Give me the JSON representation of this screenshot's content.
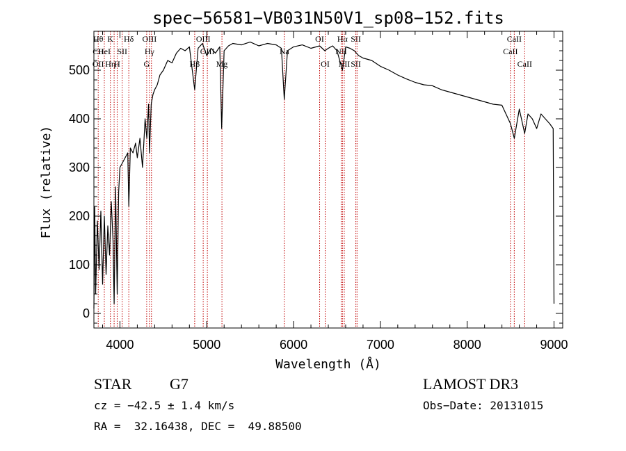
{
  "chart_data": {
    "type": "line",
    "title": "spec−56581−VB031N50V1_sp08−152.fits",
    "xlabel": "Wavelength (Å)",
    "ylabel": "Flux (relative)",
    "xlim": [
      3700,
      9100
    ],
    "ylim": [
      -30,
      580
    ],
    "xticks": [
      4000,
      5000,
      6000,
      7000,
      8000,
      9000
    ],
    "yticks": [
      0,
      100,
      200,
      300,
      400,
      500
    ],
    "grid": false,
    "series": [
      {
        "name": "spectrum",
        "color": "#000000",
        "x": [
          3700,
          3710,
          3720,
          3740,
          3760,
          3780,
          3800,
          3820,
          3840,
          3860,
          3880,
          3900,
          3920,
          3933,
          3950,
          3968,
          3985,
          4000,
          4030,
          4060,
          4090,
          4102,
          4120,
          4150,
          4180,
          4200,
          4230,
          4260,
          4290,
          4310,
          4330,
          4340,
          4360,
          4380,
          4400,
          4430,
          4460,
          4500,
          4550,
          4600,
          4650,
          4700,
          4750,
          4800,
          4861,
          4900,
          4950,
          5000,
          5050,
          5100,
          5150,
          5172,
          5200,
          5250,
          5300,
          5400,
          5500,
          5600,
          5700,
          5800,
          5860,
          5893,
          5930,
          6000,
          6100,
          6200,
          6300,
          6360,
          6400,
          6450,
          6500,
          6563,
          6600,
          6650,
          6700,
          6750,
          6800,
          6900,
          7000,
          7100,
          7200,
          7300,
          7400,
          7500,
          7600,
          7700,
          7800,
          7900,
          8000,
          8100,
          8200,
          8300,
          8400,
          8498,
          8542,
          8600,
          8662,
          8700,
          8750,
          8800,
          8850,
          8900,
          8950,
          8990,
          9000
        ],
        "values": [
          10,
          220,
          40,
          190,
          90,
          210,
          60,
          200,
          80,
          180,
          120,
          230,
          150,
          20,
          260,
          40,
          250,
          300,
          310,
          320,
          330,
          220,
          340,
          330,
          350,
          320,
          360,
          300,
          400,
          360,
          430,
          330,
          430,
          450,
          460,
          470,
          490,
          500,
          520,
          515,
          535,
          545,
          540,
          548,
          460,
          545,
          555,
          530,
          545,
          535,
          548,
          380,
          540,
          550,
          555,
          552,
          558,
          550,
          555,
          552,
          545,
          440,
          540,
          548,
          552,
          545,
          550,
          540,
          545,
          550,
          540,
          500,
          548,
          545,
          540,
          530,
          525,
          520,
          508,
          500,
          490,
          482,
          475,
          470,
          468,
          460,
          455,
          450,
          445,
          440,
          435,
          430,
          428,
          390,
          360,
          420,
          370,
          410,
          400,
          380,
          410,
          400,
          390,
          380,
          20
        ]
      }
    ],
    "lines": [
      {
        "x": 3750,
        "labels": [
          "Hθ",
          "CII",
          "OII"
        ]
      },
      {
        "x": 3820,
        "labels": [
          "",
          "HeI",
          ""
        ]
      },
      {
        "x": 3890,
        "labels": [
          "K",
          "",
          "Hη"
        ]
      },
      {
        "x": 3933,
        "labels": [
          "",
          "",
          ""
        ]
      },
      {
        "x": 3968,
        "labels": [
          "",
          "",
          "H"
        ]
      },
      {
        "x": 4026,
        "labels": [
          "",
          "SII",
          ""
        ]
      },
      {
        "x": 4102,
        "labels": [
          "Hδ",
          "",
          ""
        ]
      },
      {
        "x": 4308,
        "labels": [
          "",
          "",
          "G"
        ]
      },
      {
        "x": 4340,
        "labels": [
          "OIII",
          "Hγ",
          ""
        ]
      },
      {
        "x": 4363,
        "labels": [
          "",
          "",
          ""
        ]
      },
      {
        "x": 4861,
        "labels": [
          "",
          "",
          "Hβ"
        ]
      },
      {
        "x": 4959,
        "labels": [
          "OIII",
          "",
          ""
        ]
      },
      {
        "x": 5007,
        "labels": [
          "",
          "OIII",
          ""
        ]
      },
      {
        "x": 5175,
        "labels": [
          "",
          "",
          "Mg"
        ]
      },
      {
        "x": 5893,
        "labels": [
          "",
          "Na",
          ""
        ]
      },
      {
        "x": 6300,
        "labels": [
          "OI",
          "",
          ""
        ]
      },
      {
        "x": 6364,
        "labels": [
          "",
          "",
          "OI"
        ]
      },
      {
        "x": 6548,
        "labels": [
          "",
          "NII",
          ""
        ]
      },
      {
        "x": 6563,
        "labels": [
          "Hα",
          "",
          ""
        ]
      },
      {
        "x": 6584,
        "labels": [
          "",
          "",
          "NII"
        ]
      },
      {
        "x": 6717,
        "labels": [
          "SII",
          "",
          "SII"
        ]
      },
      {
        "x": 6731,
        "labels": [
          "",
          "",
          ""
        ]
      },
      {
        "x": 8498,
        "labels": [
          "",
          "CaII",
          ""
        ]
      },
      {
        "x": 8542,
        "labels": [
          "CaII",
          "",
          ""
        ]
      },
      {
        "x": 8662,
        "labels": [
          "",
          "",
          "CaII"
        ]
      }
    ]
  },
  "info": {
    "class_label": "STAR",
    "subclass": "G7",
    "survey": "LAMOST DR3",
    "redshift_text": "cz = −42.5 ± 1.4 km/s",
    "obs_date_text": "Obs−Date: 20131015",
    "coords_text": "RA =  32.16438, DEC =  49.88500"
  },
  "colors": {
    "spectrum": "#000000",
    "line_marker": "#c00000",
    "axis": "#000000"
  }
}
